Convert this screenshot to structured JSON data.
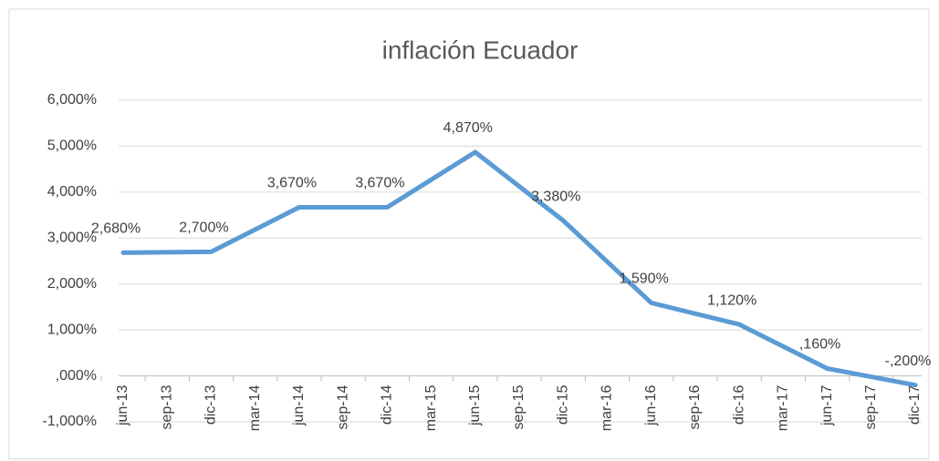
{
  "chart_data": {
    "type": "line",
    "title": "inflación Ecuador",
    "categories": [
      "jun-13",
      "sep-13",
      "dic-13",
      "mar-14",
      "jun-14",
      "sep-14",
      "dic-14",
      "mar-15",
      "jun-15",
      "sep-15",
      "dic-15",
      "mar-16",
      "jun-16",
      "sep-16",
      "dic-16",
      "mar-17",
      "jun-17",
      "sep-17",
      "dic-17"
    ],
    "x": [
      "jun-13",
      "dic-13",
      "jun-14",
      "dic-14",
      "jun-15",
      "dic-15",
      "jun-16",
      "dic-16",
      "jun-17",
      "dic-17"
    ],
    "series": [
      {
        "name": "inflación Ecuador",
        "color": "#5b9bd5",
        "values": [
          2.68,
          2.7,
          3.67,
          3.67,
          4.87,
          3.38,
          1.59,
          1.12,
          0.16,
          -0.2
        ],
        "value_labels": [
          "2,680%",
          "2,700%",
          "3,670%",
          "3,670%",
          "4,870%",
          "3,380%",
          "1,590%",
          "1,120%",
          ",160%",
          "-,200%"
        ]
      }
    ],
    "ylim": [
      -1,
      6
    ],
    "yticks": [
      {
        "value": -1,
        "label": "-1,000%"
      },
      {
        "value": 0,
        "label": ",000%"
      },
      {
        "value": 1,
        "label": "1,000%"
      },
      {
        "value": 2,
        "label": "2,000%"
      },
      {
        "value": 3,
        "label": "3,000%"
      },
      {
        "value": 4,
        "label": "4,000%"
      },
      {
        "value": 5,
        "label": "5,000%"
      },
      {
        "value": 6,
        "label": "6,000%"
      }
    ],
    "grid": true
  }
}
